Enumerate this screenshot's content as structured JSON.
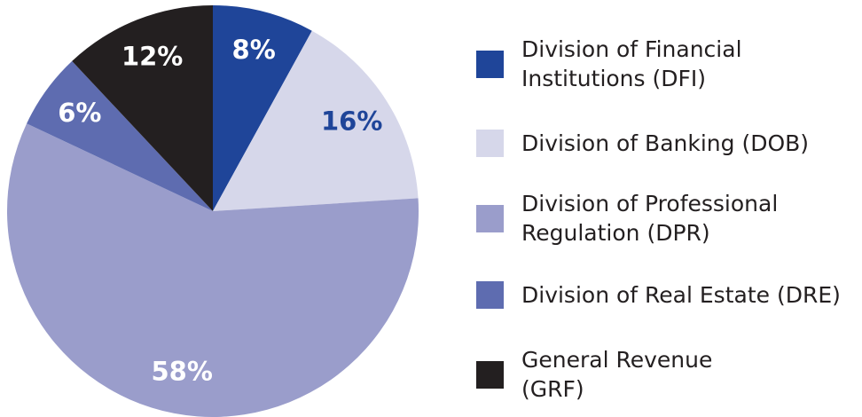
{
  "chart_data": {
    "type": "pie",
    "categories": [
      "Division of Financial\nInstitutions (DFI)",
      "Division of Banking (DOB)",
      "Division of Professional\nRegulation (DPR)",
      "Division of Real Estate (DRE)",
      "General Revenue\n(GRF)"
    ],
    "values": [
      8,
      16,
      58,
      6,
      12
    ],
    "value_labels": [
      "8%",
      "16%",
      "58%",
      "6%",
      "12%"
    ],
    "colors": [
      "#1f4599",
      "#d6d7ea",
      "#9a9dcb",
      "#5e6cb0",
      "#231f20"
    ],
    "label_colors": [
      "#ffffff",
      "#1f4599",
      "#ffffff",
      "#ffffff",
      "#ffffff"
    ],
    "legend": "right"
  }
}
